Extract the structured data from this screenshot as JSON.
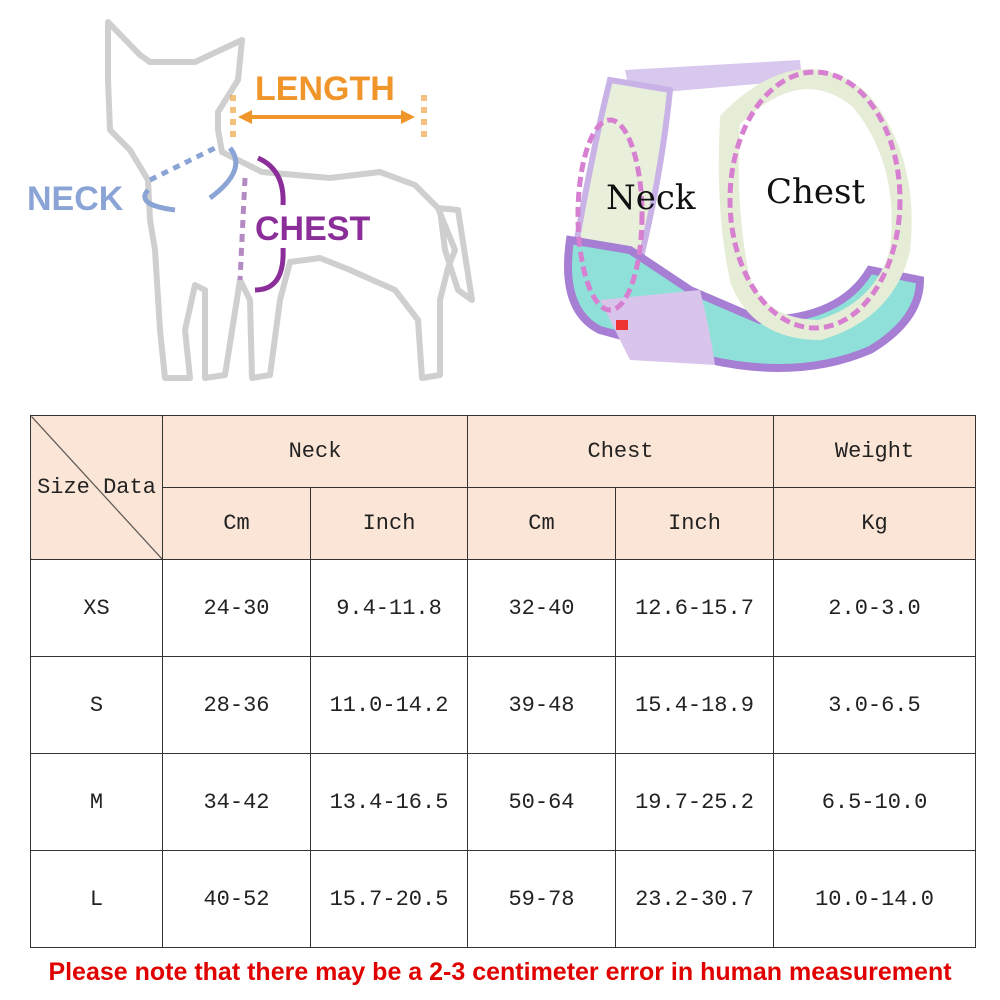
{
  "diagram": {
    "length_label": "LENGTH",
    "neck_label": "NECK",
    "chest_label": "CHEST",
    "colors": {
      "length": "#f0952a",
      "neck": "#8ba4d6",
      "chest": "#8b2e9a",
      "outline": "#cfcfcf"
    }
  },
  "harness": {
    "neck_label": "Neck",
    "chest_label": "Chest",
    "colors": {
      "strap": "#c9b3e6",
      "mesh": "#8fe0d8",
      "dash": "#d77fd0"
    }
  },
  "table": {
    "corner_left": "Size",
    "corner_right": "Data",
    "groups": [
      "Neck",
      "Chest",
      "Weight"
    ],
    "units": [
      "Cm",
      "Inch",
      "Cm",
      "Inch",
      "Kg"
    ],
    "header_color": "#fbe5d6",
    "rows": [
      {
        "size": "XS",
        "values": [
          "24-30",
          "9.4-11.8",
          "32-40",
          "12.6-15.7",
          "2.0-3.0"
        ]
      },
      {
        "size": "S",
        "values": [
          "28-36",
          "11.0-14.2",
          "39-48",
          "15.4-18.9",
          "3.0-6.5"
        ]
      },
      {
        "size": "M",
        "values": [
          "34-42",
          "13.4-16.5",
          "50-64",
          "19.7-25.2",
          "6.5-10.0"
        ]
      },
      {
        "size": "L",
        "values": [
          "40-52",
          "15.7-20.5",
          "59-78",
          "23.2-30.7",
          "10.0-14.0"
        ]
      }
    ]
  },
  "note": "Please note that there may be a 2-3 centimeter error in human measurement",
  "note_color": "#e00000"
}
